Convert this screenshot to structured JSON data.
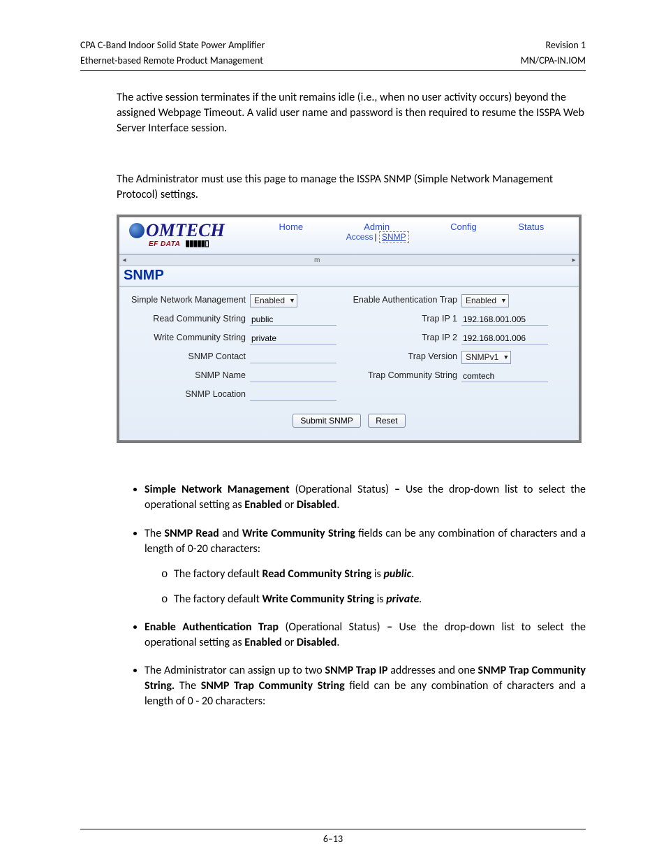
{
  "header": {
    "left1": "CPA C-Band Indoor Solid State Power Amplifier",
    "right1": "Revision 1",
    "left2": "Ethernet-based Remote Product Management",
    "right2": "MN/CPA-IN.IOM"
  },
  "para1": "The active session terminates if the unit remains idle (i.e., when no user activity occurs) beyond the assigned Webpage Timeout. A valid user name and password is then required to resume the ISSPA Web Server Interface session.",
  "para2": "The Administrator must use this page to manage the ISSPA SNMP (Simple Network Management Protocol) settings.",
  "screenshot": {
    "logo_main": "OMTECH",
    "logo_sub": "EF DATA",
    "nav": {
      "home": "Home",
      "admin": "Admin",
      "config": "Config",
      "status": "Status"
    },
    "subnav": {
      "access": "Access",
      "snmp": "SNMP"
    },
    "scroll_m": "m",
    "panel_title": "SNMP",
    "left_fields": {
      "snm_label": "Simple Network Management",
      "snm_value": "Enabled",
      "read_label": "Read Community String",
      "read_value": "public",
      "write_label": "Write Community String",
      "write_value": "private",
      "contact_label": "SNMP Contact",
      "name_label": "SNMP Name",
      "location_label": "SNMP Location"
    },
    "right_fields": {
      "auth_label": "Enable Authentication Trap",
      "auth_value": "Enabled",
      "trap1_label": "Trap IP 1",
      "trap1_value": "192.168.001.005",
      "trap2_label": "Trap IP 2",
      "trap2_value": "192.168.001.006",
      "trapver_label": "Trap Version",
      "trapver_value": "SNMPv1",
      "trapcs_label": "Trap Community String",
      "trapcs_value": "comtech"
    },
    "buttons": {
      "submit": "Submit SNMP",
      "reset": "Reset"
    }
  },
  "bullets": {
    "b1_a": "Simple Network Management",
    "b1_b": " (Operational Status) ",
    "b1_c": "– ",
    "b1_d": "Use the drop-down list to select the operational setting as ",
    "b1_e": "Enabled",
    "b1_f": " or ",
    "b1_g": "Disabled",
    "b1_h": ".",
    "b2_a": "The ",
    "b2_b": "SNMP Read",
    "b2_c": " and ",
    "b2_d": "Write Community String",
    "b2_e": " fields can be any combination of characters and a length of 0-20 characters:",
    "b2s1_a": "The factory default ",
    "b2s1_b": "Read Community String",
    "b2s1_c": " is ",
    "b2s1_d": "public",
    "b2s1_e": ".",
    "b2s2_a": "The factory default ",
    "b2s2_b": "Write Community String",
    "b2s2_c": " is ",
    "b2s2_d": "private",
    "b2s2_e": ".",
    "b3_a": "Enable Authentication Trap",
    "b3_b": " (Operational Status) ",
    "b3_c": "– ",
    "b3_d": "Use the drop-down list to select the operational setting as ",
    "b3_e": "Enabled",
    "b3_f": " or ",
    "b3_g": "Disabled",
    "b3_h": ".",
    "b4_a": "The Administrator can assign up to two ",
    "b4_b": "SNMP Trap IP",
    "b4_c": " addresses and one ",
    "b4_d": "SNMP Trap Community String.",
    "b4_e": " The ",
    "b4_f": "SNMP Trap Community String",
    "b4_g": " field can be any combination of characters and a length of 0 - 20 characters:"
  },
  "footer": "6–13"
}
